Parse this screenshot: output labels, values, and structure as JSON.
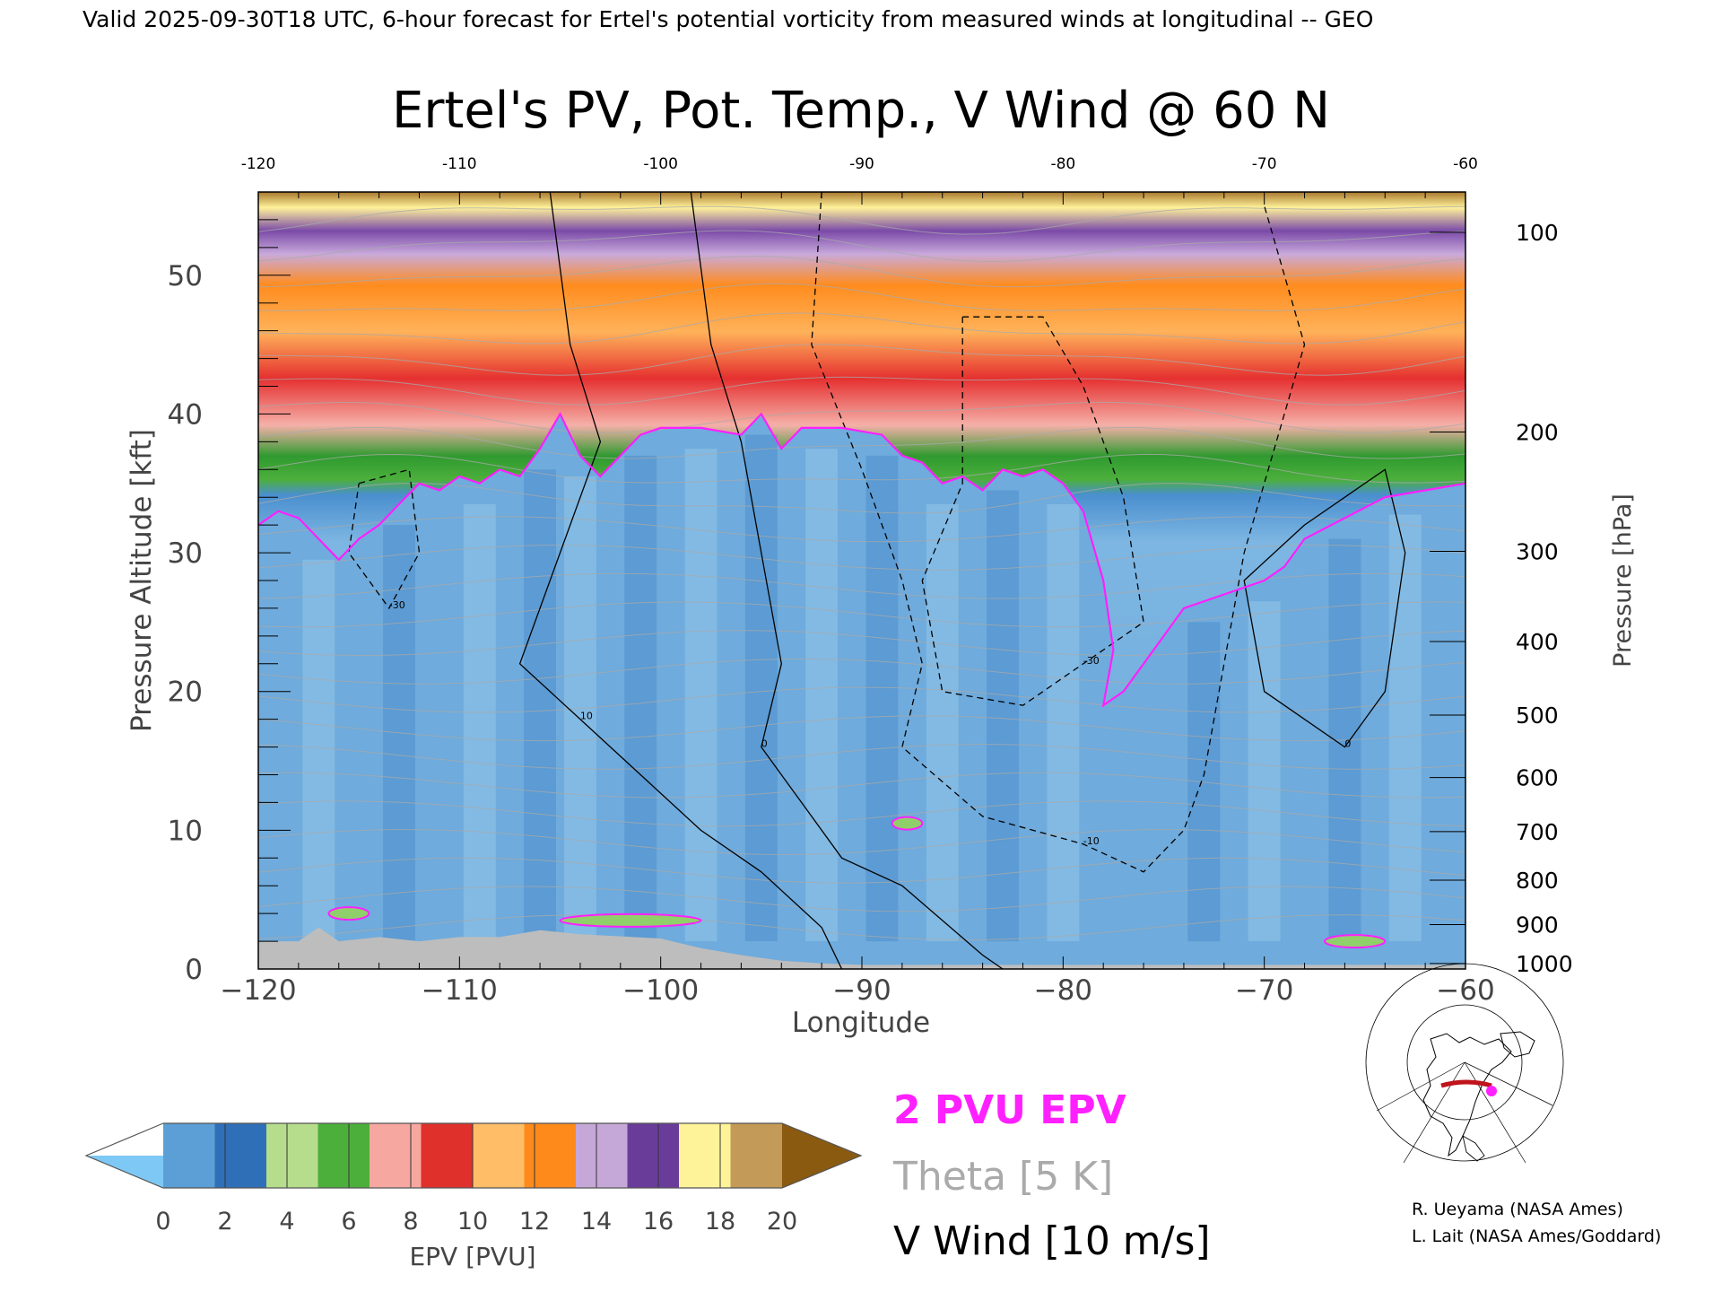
{
  "header": {
    "valid_line": "Valid 2025-09-30T18 UTC, 6-hour forecast for Ertel's potential vorticity from measured winds at longitudinal -- GEO"
  },
  "chart_data": {
    "type": "heatmap",
    "title": "Ertel's PV, Pot. Temp., V Wind @ 60 N",
    "xlabel": "Longitude",
    "ylabel": "Pressure Altitude [kft]",
    "ylabel_right": "Pressure [hPa]",
    "xlim": [
      -120,
      -60
    ],
    "ylim": [
      0,
      56
    ],
    "x_ticks": [
      "−120",
      "−110",
      "−100",
      "−90",
      "−80",
      "−70",
      "−60"
    ],
    "x_ticks_top": [
      "-120",
      "-110",
      "-100",
      "-90",
      "-80",
      "-70",
      "-60"
    ],
    "y_ticks": [
      0,
      10,
      20,
      30,
      40,
      50
    ],
    "pressure_ticks": [
      {
        "label": "100",
        "kft": 53.1
      },
      {
        "label": "200",
        "kft": 38.7
      },
      {
        "label": "300",
        "kft": 30.1
      },
      {
        "label": "400",
        "kft": 23.6
      },
      {
        "label": "500",
        "kft": 18.3
      },
      {
        "label": "600",
        "kft": 13.8
      },
      {
        "label": "700",
        "kft": 9.9
      },
      {
        "label": "800",
        "kft": 6.4
      },
      {
        "label": "900",
        "kft": 3.2
      },
      {
        "label": "1000",
        "kft": 0.4
      }
    ],
    "tropopause_2pvu": [
      [
        -120,
        32
      ],
      [
        -119,
        33
      ],
      [
        -118,
        32.5
      ],
      [
        -117,
        31
      ],
      [
        -116,
        29.5
      ],
      [
        -115,
        31
      ],
      [
        -114,
        32
      ],
      [
        -113,
        33.5
      ],
      [
        -112,
        35
      ],
      [
        -111,
        34.5
      ],
      [
        -110,
        35.5
      ],
      [
        -109,
        35
      ],
      [
        -108,
        36
      ],
      [
        -107,
        35.5
      ],
      [
        -106,
        37.5
      ],
      [
        -105,
        40
      ],
      [
        -104,
        37
      ],
      [
        -103,
        35.5
      ],
      [
        -102,
        37
      ],
      [
        -101,
        38.5
      ],
      [
        -100,
        39
      ],
      [
        -98,
        39
      ],
      [
        -96,
        38.5
      ],
      [
        -95,
        40
      ],
      [
        -94,
        37.5
      ],
      [
        -93,
        39
      ],
      [
        -91,
        39
      ],
      [
        -89,
        38.5
      ],
      [
        -88,
        37
      ],
      [
        -87,
        36.5
      ],
      [
        -86,
        35
      ],
      [
        -85,
        35.5
      ],
      [
        -84,
        34.5
      ],
      [
        -83,
        36
      ],
      [
        -82,
        35.5
      ],
      [
        -81,
        36
      ],
      [
        -80,
        35
      ],
      [
        -79,
        33
      ],
      [
        -78,
        28
      ],
      [
        -77.5,
        23
      ],
      [
        -78,
        19
      ],
      [
        -77,
        20
      ],
      [
        -76,
        22
      ],
      [
        -75,
        24
      ],
      [
        -74,
        26
      ],
      [
        -72,
        27
      ],
      [
        -70,
        28
      ],
      [
        -69,
        29
      ],
      [
        -68,
        31
      ],
      [
        -66,
        32.5
      ],
      [
        -64,
        34
      ],
      [
        -62,
        34.5
      ],
      [
        -60,
        35
      ]
    ],
    "low_level_2pvu_blobs": [
      {
        "x": [
          -116.5,
          -114.5
        ],
        "kft": 4.0
      },
      {
        "x": [
          -105,
          -98
        ],
        "kft": 3.5
      },
      {
        "x": [
          -88.5,
          -87
        ],
        "kft": 10.5
      },
      {
        "x": [
          -67,
          -64
        ],
        "kft": 2.0
      }
    ],
    "surface_terrain": [
      [
        -120,
        2.0
      ],
      [
        -118,
        2.0
      ],
      [
        -117,
        3.0
      ],
      [
        -116,
        2.0
      ],
      [
        -114,
        2.3
      ],
      [
        -112,
        2.0
      ],
      [
        -110,
        2.3
      ],
      [
        -108,
        2.3
      ],
      [
        -106,
        2.8
      ],
      [
        -104,
        2.5
      ],
      [
        -100,
        2.2
      ],
      [
        -98,
        1.5
      ],
      [
        -96,
        1.0
      ],
      [
        -94,
        0.6
      ],
      [
        -92,
        0.4
      ],
      [
        -90,
        0.3
      ],
      [
        -60,
        0.3
      ]
    ],
    "v_wind_contours": [
      {
        "label": "0",
        "points": [
          [
            -98.5,
            56
          ],
          [
            -97.5,
            45
          ],
          [
            -96,
            38
          ],
          [
            -95,
            30
          ],
          [
            -94,
            22
          ],
          [
            -95,
            16
          ],
          [
            -93,
            12
          ],
          [
            -91,
            8
          ],
          [
            -88,
            6
          ],
          [
            -84,
            1
          ],
          [
            -83,
            0
          ]
        ]
      },
      {
        "label": "10",
        "points": [
          [
            -105.5,
            56
          ],
          [
            -104.5,
            45
          ],
          [
            -103,
            38
          ],
          [
            -105,
            30
          ],
          [
            -107,
            22
          ],
          [
            -104,
            18
          ],
          [
            -101,
            14
          ],
          [
            -98,
            10
          ],
          [
            -95,
            7
          ],
          [
            -92,
            3
          ],
          [
            -91,
            0
          ]
        ]
      },
      {
        "label": "-30",
        "points": [
          [
            -85,
            47
          ],
          [
            -81,
            47
          ],
          [
            -79,
            42
          ],
          [
            -77,
            34
          ],
          [
            -76,
            25
          ],
          [
            -79,
            22
          ],
          [
            -82,
            19
          ],
          [
            -86,
            20
          ],
          [
            -87,
            28
          ],
          [
            -85,
            35
          ],
          [
            -85,
            47
          ]
        ]
      },
      {
        "label": "-10",
        "points": [
          [
            -92,
            56
          ],
          [
            -92.5,
            45
          ],
          [
            -90,
            36
          ],
          [
            -88,
            28
          ],
          [
            -87,
            22
          ],
          [
            -88,
            16
          ],
          [
            -84,
            11
          ],
          [
            -79,
            9
          ],
          [
            -76,
            7
          ],
          [
            -74,
            10
          ],
          [
            -73,
            14
          ],
          [
            -71,
            30
          ],
          [
            -68,
            45
          ],
          [
            -70,
            55
          ]
        ]
      },
      {
        "label": "0",
        "points": [
          [
            -68,
            32
          ],
          [
            -64,
            36
          ],
          [
            -63,
            30
          ],
          [
            -64,
            20
          ],
          [
            -66,
            16
          ],
          [
            -70,
            20
          ],
          [
            -71,
            28
          ],
          [
            -68,
            32
          ]
        ]
      },
      {
        "label": "-30",
        "points": [
          [
            -115,
            35
          ],
          [
            -112.5,
            36
          ],
          [
            -112,
            30
          ],
          [
            -113.5,
            26
          ],
          [
            -115.5,
            30
          ],
          [
            -115,
            35
          ]
        ]
      }
    ]
  },
  "colorbar": {
    "label": "EPV [PVU]",
    "ticks": [
      "0",
      "2",
      "4",
      "6",
      "8",
      "10",
      "12",
      "14",
      "16",
      "18",
      "20"
    ],
    "under_color": "#7ec8f6",
    "over_color": "#8a5a10",
    "bands": [
      "#5b9fd6",
      "#2f6fb7",
      "#b6dd8c",
      "#4caf3c",
      "#f6a8a0",
      "#e0302c",
      "#ffbd67",
      "#ff8a1c",
      "#c6a8d8",
      "#6a3c9a",
      "#fff39a",
      "#c49a58"
    ]
  },
  "legend": {
    "epv_label": "2 PVU EPV",
    "theta_label": "Theta [5 K]",
    "wind_label": "V Wind [10 m/s]",
    "epv_color": "#ff20ff",
    "theta_color": "#aaaaaa",
    "wind_color": "#000000"
  },
  "credits": {
    "line1": "R. Ueyama (NASA Ames)",
    "line2": "L. Lait (NASA Ames/Goddard)"
  }
}
